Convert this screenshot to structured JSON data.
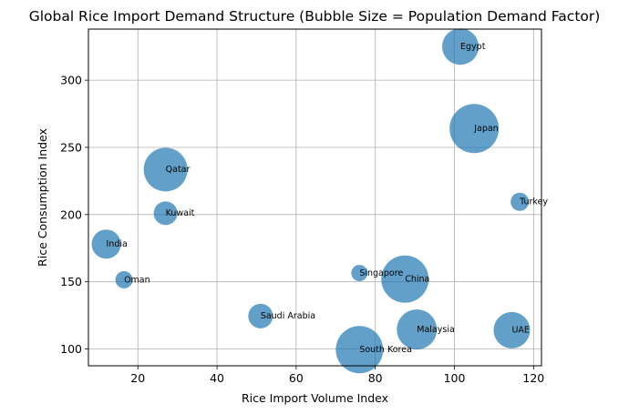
{
  "chart_data": {
    "type": "scatter",
    "title": "Global Rice Import Demand Structure (Bubble Size = Population Demand Factor)",
    "xlabel": "Rice Import Volume Index",
    "ylabel": "Rice Consumption Index",
    "xlim": [
      7.5,
      122
    ],
    "ylim": [
      87.5,
      338
    ],
    "xticks": [
      20,
      40,
      60,
      80,
      100,
      120
    ],
    "yticks": [
      100,
      150,
      200,
      250,
      300
    ],
    "grid": true,
    "bubble_color": "#1f77b4",
    "bubble_alpha": 0.7,
    "points": [
      {
        "label": "Egypt",
        "x": 101.5,
        "y": 325,
        "size": 20
      },
      {
        "label": "Japan",
        "x": 105,
        "y": 264,
        "size": 27
      },
      {
        "label": "Turkey",
        "x": 116.5,
        "y": 209.5,
        "size": 10
      },
      {
        "label": "Qatar",
        "x": 27,
        "y": 233.5,
        "size": 24
      },
      {
        "label": "Kuwait",
        "x": 27,
        "y": 201,
        "size": 13
      },
      {
        "label": "India",
        "x": 12,
        "y": 178,
        "size": 16
      },
      {
        "label": "Oman",
        "x": 16.5,
        "y": 151.5,
        "size": 9.5
      },
      {
        "label": "Singapore",
        "x": 76,
        "y": 156.5,
        "size": 9
      },
      {
        "label": "China",
        "x": 87.5,
        "y": 152,
        "size": 26
      },
      {
        "label": "Saudi Arabia",
        "x": 51,
        "y": 124.5,
        "size": 13.5
      },
      {
        "label": "Malaysia",
        "x": 90.5,
        "y": 114.5,
        "size": 22
      },
      {
        "label": "UAE",
        "x": 114.5,
        "y": 114,
        "size": 20
      },
      {
        "label": "South Korea",
        "x": 76,
        "y": 99.5,
        "size": 26
      }
    ]
  }
}
